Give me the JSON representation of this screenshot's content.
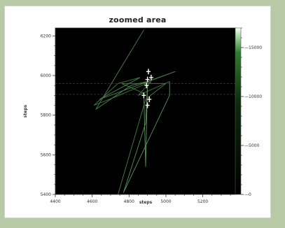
{
  "chart_data": {
    "type": "heatmap",
    "title": "zoomed area",
    "xlabel": "steps",
    "ylabel": "steps",
    "xlim": [
      4400,
      5380
    ],
    "ylim": [
      5400,
      6240
    ],
    "x_ticks": [
      4400,
      4600,
      4800,
      5000,
      5200
    ],
    "y_ticks": [
      5400,
      5600,
      5800,
      6000,
      6200
    ],
    "colorbar": {
      "ticks": [
        0,
        5000,
        10000,
        15000
      ],
      "tick_labels": [
        "0",
        "5000",
        "10000",
        "15000"
      ],
      "range": [
        0,
        17000
      ]
    },
    "paths": [
      {
        "name": "",
        "points": [
          [
            4880,
            6230
          ],
          [
            4620,
            5830
          ],
          [
            4810,
            5950
          ],
          [
            4900,
            5970
          ],
          [
            5050,
            6020
          ],
          [
            4640,
            5880
          ],
          [
            4860,
            5990
          ]
        ]
      },
      {
        "name": "",
        "points": [
          [
            4860,
            5990
          ],
          [
            4740,
            5960
          ],
          [
            4610,
            5850
          ],
          [
            4720,
            5890
          ],
          [
            4920,
            5970
          ],
          [
            4850,
            5900
          ],
          [
            5020,
            5970
          ]
        ]
      },
      {
        "name": "",
        "points": [
          [
            5020,
            5970
          ],
          [
            5020,
            5900
          ],
          [
            4770,
            5410
          ],
          [
            4890,
            5760
          ],
          [
            4900,
            5950
          ],
          [
            4890,
            5540
          ],
          [
            4880,
            5910
          ]
        ]
      },
      {
        "name": "",
        "points": [
          [
            4880,
            5910
          ],
          [
            4760,
            5960
          ],
          [
            5000,
            5960
          ],
          [
            4890,
            5880
          ],
          [
            4740,
            5400
          ]
        ]
      }
    ],
    "hotspots": [
      {
        "name": "",
        "points": [
          [
            4900,
            5980
          ],
          [
            4905,
            6020
          ],
          [
            4895,
            5950
          ],
          [
            4910,
            5880
          ],
          [
            4880,
            5900
          ],
          [
            4920,
            5990
          ],
          [
            4900,
            5850
          ]
        ]
      }
    ],
    "reference_lines": [
      {
        "name": "",
        "y": 5960
      },
      {
        "name": "",
        "y": 5905
      }
    ]
  }
}
